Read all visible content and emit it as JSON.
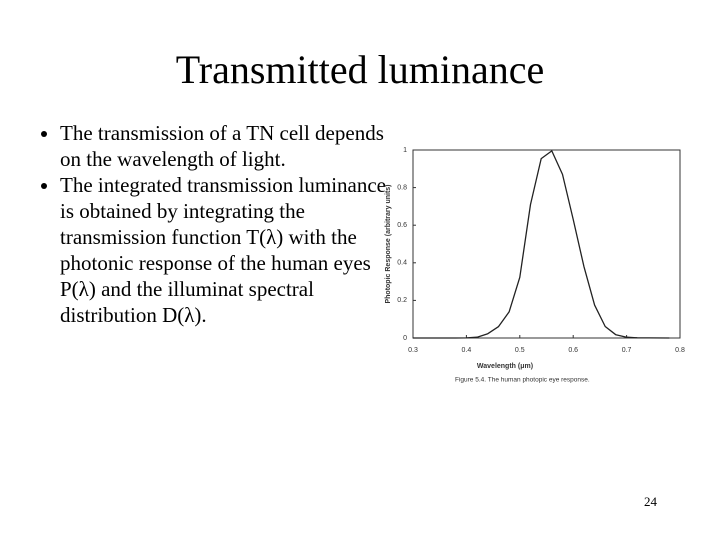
{
  "title": "Transmitted luminance",
  "bullets": [
    "The transmission of a TN cell depends on the wavelength of light.",
    "The integrated transmission luminance is obtained by integrating the transmission function T(λ) with the photonic response of the human eyes P(λ) and the illuminat spectral distribution D(λ)."
  ],
  "page_number": "24",
  "chart_data": {
    "type": "line",
    "x_label": "Wavelength (μm)",
    "y_label": "Photopic Response (arbitrary units)",
    "caption": "Figure 5.4.   The human photopic eye response.",
    "x": [
      0.3,
      0.35,
      0.38,
      0.4,
      0.42,
      0.44,
      0.46,
      0.48,
      0.5,
      0.52,
      0.54,
      0.56,
      0.58,
      0.6,
      0.62,
      0.64,
      0.66,
      0.68,
      0.7,
      0.72,
      0.74,
      0.78
    ],
    "values": [
      0,
      0,
      0,
      0.0004,
      0.004,
      0.023,
      0.06,
      0.139,
      0.323,
      0.71,
      0.954,
      0.995,
      0.87,
      0.631,
      0.381,
      0.175,
      0.061,
      0.017,
      0.004,
      0.001,
      0.0003,
      0
    ],
    "color": "#222222",
    "xlim": [
      0.3,
      0.8
    ],
    "ylim": [
      0,
      1
    ],
    "xticks": [
      0.3,
      0.4,
      0.5,
      0.6,
      0.7,
      0.8
    ],
    "yticks": [
      0,
      0.2,
      0.4,
      0.6,
      0.8,
      1
    ]
  }
}
